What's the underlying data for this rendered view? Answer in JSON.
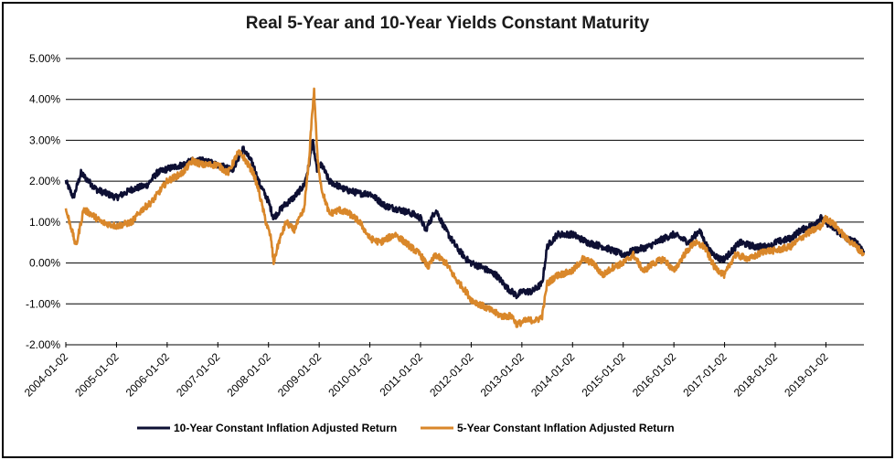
{
  "chart_data": {
    "type": "line",
    "title": "Real 5-Year and 10-Year Yields Constant Maturity",
    "xlabel": "",
    "ylabel": "",
    "ylim": [
      -2,
      5
    ],
    "yticks": [
      "5.00%",
      "4.00%",
      "3.00%",
      "2.00%",
      "1.00%",
      "0.00%",
      "-1.00%",
      "-2.00%"
    ],
    "ytick_values": [
      5,
      4,
      3,
      2,
      1,
      0,
      -1,
      -2
    ],
    "x_start": 2004.0,
    "x_end": 2019.75,
    "xticks": [
      "2004-01-02",
      "2005-01-02",
      "2006-01-02",
      "2007-01-02",
      "2008-01-02",
      "2009-01-02",
      "2010-01-02",
      "2011-01-02",
      "2012-01-02",
      "2013-01-02",
      "2014-01-02",
      "2015-01-02",
      "2016-01-02",
      "2017-01-02",
      "2018-01-02",
      "2019-01-02"
    ],
    "xtick_values": [
      2004,
      2005,
      2006,
      2007,
      2008,
      2009,
      2010,
      2011,
      2012,
      2013,
      2014,
      2015,
      2016,
      2017,
      2018,
      2019
    ],
    "grid": "horizontal",
    "legend_position": "bottom",
    "series": [
      {
        "name": "10-Year Constant Inflation Adjusted Return",
        "color": "#0d0f33",
        "x": [
          2004.0,
          2004.15,
          2004.3,
          2004.45,
          2004.6,
          2004.8,
          2005.0,
          2005.3,
          2005.6,
          2005.8,
          2006.0,
          2006.3,
          2006.5,
          2006.7,
          2007.0,
          2007.3,
          2007.5,
          2007.7,
          2007.8,
          2008.0,
          2008.1,
          2008.3,
          2008.5,
          2008.7,
          2008.8,
          2008.87,
          2008.95,
          2009.05,
          2009.2,
          2009.5,
          2009.8,
          2010.0,
          2010.3,
          2010.6,
          2010.85,
          2011.0,
          2011.1,
          2011.3,
          2011.5,
          2011.7,
          2011.9,
          2012.0,
          2012.2,
          2012.5,
          2012.7,
          2012.9,
          2013.0,
          2013.2,
          2013.4,
          2013.5,
          2013.7,
          2014.0,
          2014.3,
          2014.6,
          2014.8,
          2015.0,
          2015.2,
          2015.5,
          2015.8,
          2016.0,
          2016.3,
          2016.5,
          2016.7,
          2016.9,
          2017.0,
          2017.3,
          2017.6,
          2017.9,
          2018.0,
          2018.3,
          2018.5,
          2018.7,
          2018.9,
          2019.0,
          2019.2,
          2019.4,
          2019.6,
          2019.75
        ],
        "values": [
          2.0,
          1.6,
          2.2,
          2.0,
          1.8,
          1.7,
          1.6,
          1.8,
          1.9,
          2.2,
          2.3,
          2.4,
          2.5,
          2.5,
          2.4,
          2.3,
          2.8,
          2.4,
          2.0,
          1.5,
          1.1,
          1.4,
          1.6,
          1.9,
          2.4,
          3.0,
          2.3,
          2.4,
          2.0,
          1.8,
          1.7,
          1.7,
          1.4,
          1.3,
          1.2,
          1.1,
          0.8,
          1.3,
          0.8,
          0.4,
          0.1,
          0.0,
          -0.1,
          -0.3,
          -0.6,
          -0.8,
          -0.7,
          -0.7,
          -0.5,
          0.4,
          0.7,
          0.7,
          0.5,
          0.4,
          0.3,
          0.2,
          0.3,
          0.4,
          0.6,
          0.7,
          0.5,
          0.8,
          0.3,
          0.1,
          0.1,
          0.5,
          0.4,
          0.4,
          0.5,
          0.6,
          0.8,
          0.9,
          1.1,
          1.0,
          0.8,
          0.6,
          0.5,
          0.3
        ]
      },
      {
        "name": "5-Year Constant Inflation Adjusted Return",
        "color": "#d9872a",
        "x": [
          2004.0,
          2004.1,
          2004.2,
          2004.35,
          2004.5,
          2004.7,
          2005.0,
          2005.3,
          2005.5,
          2005.7,
          2006.0,
          2006.3,
          2006.5,
          2006.7,
          2007.0,
          2007.2,
          2007.4,
          2007.5,
          2007.7,
          2007.8,
          2007.95,
          2008.05,
          2008.1,
          2008.2,
          2008.35,
          2008.5,
          2008.7,
          2008.8,
          2008.85,
          2008.9,
          2008.97,
          2009.05,
          2009.2,
          2009.4,
          2009.6,
          2009.8,
          2010.0,
          2010.2,
          2010.5,
          2010.8,
          2011.0,
          2011.15,
          2011.3,
          2011.5,
          2011.7,
          2011.9,
          2012.0,
          2012.3,
          2012.6,
          2012.8,
          2012.9,
          2013.1,
          2013.3,
          2013.4,
          2013.5,
          2013.7,
          2014.0,
          2014.2,
          2014.4,
          2014.6,
          2014.8,
          2015.0,
          2015.2,
          2015.4,
          2015.6,
          2015.8,
          2016.0,
          2016.2,
          2016.4,
          2016.6,
          2016.8,
          2017.0,
          2017.2,
          2017.5,
          2017.8,
          2018.0,
          2018.3,
          2018.6,
          2018.9,
          2019.0,
          2019.2,
          2019.4,
          2019.6,
          2019.75
        ],
        "values": [
          1.3,
          0.9,
          0.4,
          1.3,
          1.2,
          1.0,
          0.9,
          1.0,
          1.3,
          1.5,
          2.0,
          2.2,
          2.5,
          2.4,
          2.4,
          2.2,
          2.7,
          2.6,
          2.2,
          1.8,
          1.0,
          0.6,
          0.0,
          0.5,
          1.0,
          0.8,
          1.3,
          2.5,
          3.5,
          4.2,
          2.5,
          1.8,
          1.2,
          1.3,
          1.2,
          1.0,
          0.6,
          0.5,
          0.7,
          0.4,
          0.2,
          -0.1,
          0.2,
          0.0,
          -0.4,
          -0.7,
          -0.9,
          -1.1,
          -1.3,
          -1.3,
          -1.5,
          -1.4,
          -1.4,
          -1.3,
          -0.5,
          -0.3,
          -0.2,
          0.1,
          0.0,
          -0.3,
          -0.1,
          0.0,
          0.2,
          -0.2,
          0.0,
          0.1,
          -0.2,
          0.2,
          0.5,
          0.4,
          -0.1,
          -0.3,
          0.2,
          0.1,
          0.3,
          0.3,
          0.4,
          0.7,
          0.9,
          1.1,
          0.9,
          0.6,
          0.4,
          0.2
        ]
      }
    ]
  }
}
